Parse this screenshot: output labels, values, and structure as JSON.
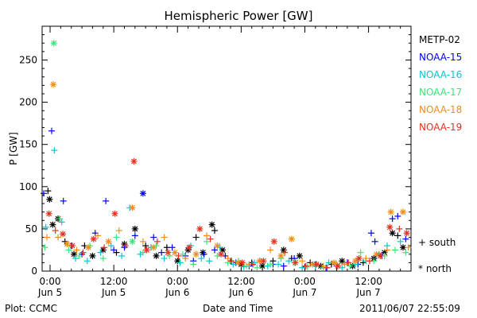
{
  "chart_data": {
    "type": "scatter",
    "title": "Hemispheric Power [GW]",
    "xlabel": "Date and Time",
    "ylabel": "P [GW]",
    "x_unit": "hours since 2011-06-05 00:00",
    "xlim": [
      -1.5,
      68
    ],
    "ylim": [
      0,
      290
    ],
    "yticks": [
      0,
      50,
      100,
      150,
      200,
      250
    ],
    "xticks": [
      {
        "x": 0,
        "time": "0:00",
        "date": "Jun 5"
      },
      {
        "x": 12,
        "time": "12:00",
        "date": "Jun 5"
      },
      {
        "x": 24,
        "time": "0:00",
        "date": "Jun 6"
      },
      {
        "x": 36,
        "time": "12:00",
        "date": "Jun 6"
      },
      {
        "x": 48,
        "time": "0:00",
        "date": "Jun 7"
      },
      {
        "x": 60,
        "time": "12:00",
        "date": "Jun 7"
      }
    ],
    "markers": {
      "south_label": "+ south",
      "north_label": "* north"
    },
    "series": [
      {
        "name": "METP-02",
        "color": "#000000",
        "points": [
          [
            -0.4,
            95,
            "+"
          ],
          [
            -0.1,
            85,
            "*"
          ],
          [
            0.5,
            55,
            "*"
          ],
          [
            1.5,
            62,
            "*"
          ],
          [
            2.8,
            35,
            "+"
          ],
          [
            4.5,
            20,
            "*"
          ],
          [
            6.5,
            30,
            "+"
          ],
          [
            8,
            18,
            "*"
          ],
          [
            10,
            25,
            "*"
          ],
          [
            12.5,
            22,
            "+"
          ],
          [
            14,
            32,
            "*"
          ],
          [
            16,
            50,
            "*"
          ],
          [
            18,
            30,
            "+"
          ],
          [
            20,
            18,
            "*"
          ],
          [
            22,
            28,
            "+"
          ],
          [
            24,
            12,
            "*"
          ],
          [
            26,
            25,
            "*"
          ],
          [
            27.5,
            40,
            "+"
          ],
          [
            28.8,
            22,
            "*"
          ],
          [
            30.5,
            55,
            "*"
          ],
          [
            31,
            48,
            "+"
          ],
          [
            32.5,
            25,
            "*"
          ],
          [
            34,
            12,
            "+"
          ],
          [
            36,
            8,
            "*"
          ],
          [
            38,
            10,
            "+"
          ],
          [
            40,
            6,
            "*"
          ],
          [
            42,
            12,
            "+"
          ],
          [
            44,
            25,
            "*"
          ],
          [
            45.5,
            15,
            "+"
          ],
          [
            47,
            18,
            "*"
          ],
          [
            49,
            10,
            "+"
          ],
          [
            51,
            6,
            "*"
          ],
          [
            53,
            8,
            "+"
          ],
          [
            55,
            12,
            "*"
          ],
          [
            57,
            6,
            "*"
          ],
          [
            59,
            10,
            "+"
          ],
          [
            61,
            15,
            "*"
          ],
          [
            63,
            22,
            "*"
          ],
          [
            64.5,
            45,
            "*"
          ],
          [
            65.5,
            42,
            "+"
          ],
          [
            66.5,
            28,
            "*"
          ]
        ]
      },
      {
        "name": "NOAA-15",
        "color": "#0000ff",
        "points": [
          [
            -1.2,
            92,
            "+"
          ],
          [
            0.3,
            166,
            "+"
          ],
          [
            2.5,
            83,
            "+"
          ],
          [
            4,
            30,
            "+"
          ],
          [
            6,
            20,
            "+"
          ],
          [
            8.5,
            45,
            "+"
          ],
          [
            10.5,
            83,
            "+"
          ],
          [
            12,
            25,
            "+"
          ],
          [
            14,
            28,
            "+"
          ],
          [
            16,
            42,
            "+"
          ],
          [
            17.5,
            92,
            "*"
          ],
          [
            19.5,
            40,
            "+"
          ],
          [
            21,
            22,
            "+"
          ],
          [
            23,
            28,
            "+"
          ],
          [
            25.5,
            18,
            "+"
          ],
          [
            27,
            12,
            "+"
          ],
          [
            29,
            20,
            "+"
          ],
          [
            31,
            25,
            "+"
          ],
          [
            33,
            18,
            "+"
          ],
          [
            35,
            10,
            "+"
          ],
          [
            37.5,
            6,
            "+"
          ],
          [
            39.5,
            12,
            "+"
          ],
          [
            42,
            8,
            "+"
          ],
          [
            44,
            6,
            "+"
          ],
          [
            46,
            15,
            "+"
          ],
          [
            48,
            5,
            "+"
          ],
          [
            50,
            8,
            "+"
          ],
          [
            52,
            4,
            "+"
          ],
          [
            54,
            6,
            "+"
          ],
          [
            56,
            10,
            "+"
          ],
          [
            58,
            8,
            "+"
          ],
          [
            60.5,
            45,
            "+"
          ],
          [
            61.2,
            35,
            "+"
          ],
          [
            62.5,
            18,
            "+"
          ],
          [
            64.5,
            62,
            "+"
          ],
          [
            65.5,
            65,
            "+"
          ],
          [
            67,
            38,
            "+"
          ]
        ]
      },
      {
        "name": "NOAA-16",
        "color": "#00c8d2",
        "points": [
          [
            -0.8,
            52,
            "+"
          ],
          [
            0.8,
            143,
            "+"
          ],
          [
            2.2,
            58,
            "+"
          ],
          [
            4.8,
            15,
            "+"
          ],
          [
            7,
            12,
            "+"
          ],
          [
            9.5,
            22,
            "+"
          ],
          [
            11.5,
            30,
            "+"
          ],
          [
            13.5,
            18,
            "+"
          ],
          [
            15,
            75,
            "+"
          ],
          [
            17,
            20,
            "+"
          ],
          [
            19,
            28,
            "+"
          ],
          [
            21.5,
            15,
            "+"
          ],
          [
            24.5,
            10,
            "+"
          ],
          [
            26.5,
            30,
            "+"
          ],
          [
            28.5,
            15,
            "+"
          ],
          [
            30,
            12,
            "+"
          ],
          [
            32,
            28,
            "+"
          ],
          [
            34.5,
            8,
            "+"
          ],
          [
            36.5,
            5,
            "+"
          ],
          [
            38.5,
            10,
            "+"
          ],
          [
            41,
            6,
            "+"
          ],
          [
            43,
            8,
            "+"
          ],
          [
            45,
            12,
            "+"
          ],
          [
            47.5,
            4,
            "+"
          ],
          [
            50,
            6,
            "+"
          ],
          [
            52.5,
            10,
            "+"
          ],
          [
            55,
            4,
            "+"
          ],
          [
            57.5,
            8,
            "+"
          ],
          [
            59.5,
            12,
            "+"
          ],
          [
            62,
            20,
            "+"
          ],
          [
            63.5,
            30,
            "+"
          ],
          [
            66,
            35,
            "+"
          ]
        ]
      },
      {
        "name": "NOAA-17",
        "color": "#3ce678",
        "points": [
          [
            -1,
            28,
            "+"
          ],
          [
            0.7,
            270,
            "*"
          ],
          [
            1.8,
            62,
            "+"
          ],
          [
            3.5,
            25,
            "+"
          ],
          [
            5.5,
            18,
            "+"
          ],
          [
            7.5,
            30,
            "+"
          ],
          [
            10,
            15,
            "+"
          ],
          [
            12.5,
            40,
            "+"
          ],
          [
            15.5,
            35,
            "*"
          ],
          [
            17.5,
            22,
            "+"
          ],
          [
            20,
            30,
            "+"
          ],
          [
            22.5,
            18,
            "+"
          ],
          [
            25,
            20,
            "+"
          ],
          [
            27,
            8,
            "+"
          ],
          [
            29.5,
            35,
            "+"
          ],
          [
            31.5,
            18,
            "+"
          ],
          [
            33.5,
            10,
            "+"
          ],
          [
            35.5,
            12,
            "+"
          ],
          [
            37,
            6,
            "+"
          ],
          [
            39,
            4,
            "+"
          ],
          [
            41.5,
            8,
            "+"
          ],
          [
            43.5,
            15,
            "+"
          ],
          [
            46,
            10,
            "+"
          ],
          [
            48.5,
            5,
            "+"
          ],
          [
            51.5,
            4,
            "+"
          ],
          [
            54,
            8,
            "+"
          ],
          [
            56.5,
            6,
            "+"
          ],
          [
            58.5,
            22,
            "+"
          ],
          [
            61,
            12,
            "+"
          ],
          [
            63,
            18,
            "+"
          ],
          [
            65,
            25,
            "+"
          ],
          [
            67,
            22,
            "+"
          ]
        ]
      },
      {
        "name": "NOAA-18",
        "color": "#f08c1e",
        "points": [
          [
            -0.6,
            40,
            "+"
          ],
          [
            0.6,
            221,
            "*"
          ],
          [
            1.5,
            40,
            "+"
          ],
          [
            3.2,
            32,
            "*"
          ],
          [
            5,
            25,
            "+"
          ],
          [
            7.2,
            28,
            "*"
          ],
          [
            9,
            42,
            "+"
          ],
          [
            11,
            35,
            "*"
          ],
          [
            13,
            48,
            "+"
          ],
          [
            15.5,
            75,
            "*"
          ],
          [
            17.5,
            35,
            "+"
          ],
          [
            19.5,
            28,
            "*"
          ],
          [
            21.5,
            40,
            "+"
          ],
          [
            23.5,
            22,
            "*"
          ],
          [
            25.5,
            15,
            "+"
          ],
          [
            27.5,
            20,
            "*"
          ],
          [
            29.5,
            42,
            "+"
          ],
          [
            31.5,
            30,
            "*"
          ],
          [
            33.5,
            15,
            "+"
          ],
          [
            35.5,
            10,
            "*"
          ],
          [
            37.5,
            8,
            "+"
          ],
          [
            39.5,
            12,
            "*"
          ],
          [
            41.5,
            25,
            "+"
          ],
          [
            43.5,
            18,
            "*"
          ],
          [
            45.5,
            38,
            "*"
          ],
          [
            47.5,
            12,
            "+"
          ],
          [
            49.5,
            8,
            "*"
          ],
          [
            51.5,
            6,
            "+"
          ],
          [
            53.5,
            10,
            "*"
          ],
          [
            55.5,
            8,
            "+"
          ],
          [
            57.5,
            12,
            "*"
          ],
          [
            59.5,
            15,
            "+"
          ],
          [
            61.5,
            20,
            "*"
          ],
          [
            63.5,
            25,
            "+"
          ],
          [
            64.2,
            70,
            "*"
          ],
          [
            66.5,
            70,
            "*"
          ],
          [
            67.5,
            28,
            "+"
          ]
        ]
      },
      {
        "name": "NOAA-19",
        "color": "#e6321e",
        "points": [
          [
            -0.2,
            68,
            "*"
          ],
          [
            1,
            48,
            "+"
          ],
          [
            2.4,
            44,
            "*"
          ],
          [
            4.2,
            30,
            "*"
          ],
          [
            6.2,
            22,
            "+"
          ],
          [
            8.2,
            38,
            "*"
          ],
          [
            10.2,
            28,
            "+"
          ],
          [
            12.2,
            68,
            "*"
          ],
          [
            14.2,
            30,
            "+"
          ],
          [
            15.8,
            130,
            "*"
          ],
          [
            18.2,
            25,
            "*"
          ],
          [
            20.2,
            35,
            "+"
          ],
          [
            22.2,
            22,
            "*"
          ],
          [
            24.2,
            18,
            "+"
          ],
          [
            26.2,
            28,
            "*"
          ],
          [
            28.2,
            50,
            "*"
          ],
          [
            30.2,
            38,
            "+"
          ],
          [
            32.2,
            20,
            "*"
          ],
          [
            34.2,
            12,
            "+"
          ],
          [
            36.2,
            10,
            "*"
          ],
          [
            38.2,
            8,
            "+"
          ],
          [
            40.2,
            12,
            "*"
          ],
          [
            42.2,
            35,
            "*"
          ],
          [
            44.2,
            22,
            "+"
          ],
          [
            46.2,
            10,
            "*"
          ],
          [
            48.2,
            6,
            "+"
          ],
          [
            50.2,
            8,
            "*"
          ],
          [
            52.2,
            4,
            "+"
          ],
          [
            54.2,
            6,
            "*"
          ],
          [
            56.2,
            10,
            "+"
          ],
          [
            58.2,
            15,
            "*"
          ],
          [
            60.2,
            12,
            "+"
          ],
          [
            62.2,
            18,
            "*"
          ],
          [
            64,
            52,
            "*"
          ],
          [
            65.8,
            50,
            "+"
          ],
          [
            67.2,
            45,
            "*"
          ]
        ]
      }
    ]
  },
  "footer": {
    "plot_credit": "Plot: CCMC",
    "timestamp": "2011/06/07 22:55:09"
  }
}
